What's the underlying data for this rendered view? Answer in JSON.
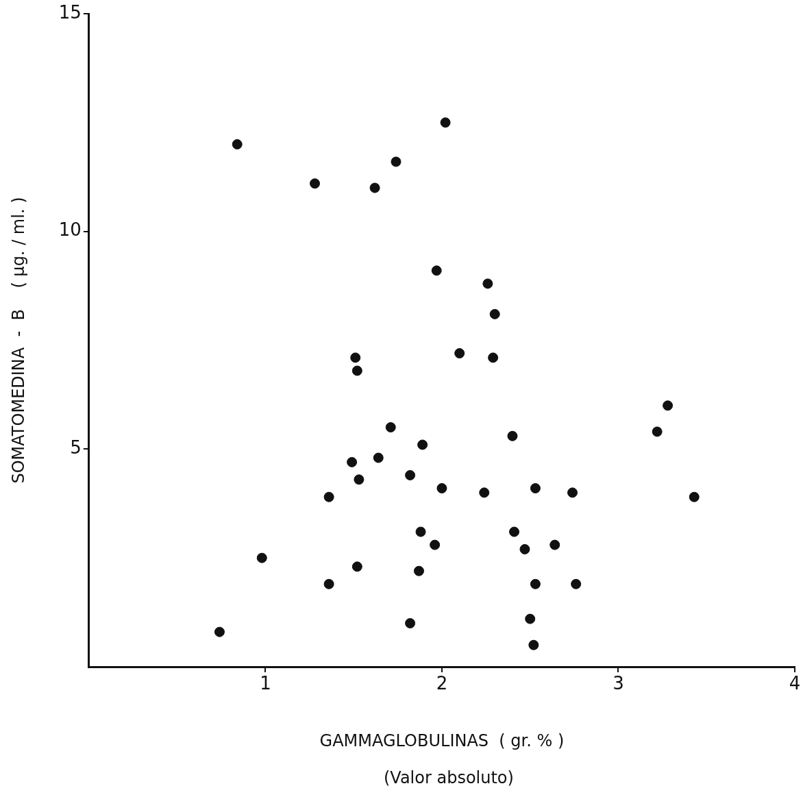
{
  "chart_data": {
    "type": "scatter",
    "xlabel": "GAMMAGLOBULINAS  ( gr. % )",
    "ylabel": "SOMATOMEDINA  -  B    ( µg. / ml. )",
    "annotations": [
      "(Valor absoluto)"
    ],
    "xlim": [
      0,
      4
    ],
    "xticks": [
      1,
      2,
      3,
      4
    ],
    "ylim": [
      0,
      15
    ],
    "yticks": [
      5,
      10,
      15
    ],
    "grid": false,
    "legend": false,
    "marker": "circle",
    "series": [
      {
        "color": "#111111",
        "x": [
          0.84,
          2.02,
          1.74,
          1.28,
          1.62,
          1.97,
          2.26,
          2.3,
          1.51,
          1.52,
          2.1,
          2.29,
          3.28,
          3.22,
          1.71,
          1.89,
          2.4,
          1.49,
          1.64,
          1.53,
          1.82,
          2.0,
          1.36,
          2.24,
          2.53,
          2.74,
          3.43,
          1.88,
          2.41,
          1.96,
          2.47,
          2.64,
          0.98,
          1.52,
          1.87,
          1.36,
          2.53,
          2.76,
          1.82,
          2.5,
          2.52,
          0.74
        ],
        "values": [
          12.0,
          12.5,
          11.6,
          11.1,
          11.0,
          9.1,
          8.8,
          8.1,
          7.1,
          6.8,
          7.2,
          7.1,
          6.0,
          5.4,
          5.5,
          5.1,
          5.3,
          4.7,
          4.8,
          4.3,
          4.4,
          4.1,
          3.9,
          4.0,
          4.1,
          4.0,
          3.9,
          3.1,
          3.1,
          2.8,
          2.7,
          2.8,
          2.5,
          2.3,
          2.2,
          1.9,
          1.9,
          1.9,
          1.0,
          1.1,
          0.5,
          0.8
        ]
      }
    ]
  }
}
